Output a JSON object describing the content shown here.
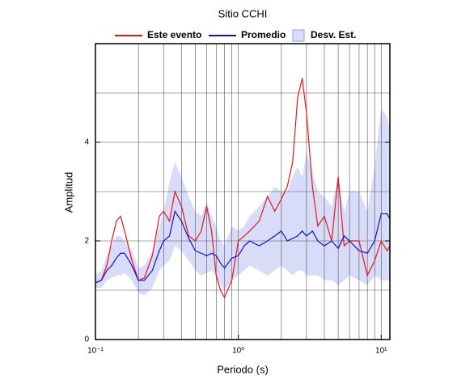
{
  "chart_data": {
    "type": "line",
    "title": "Sitio CCHI",
    "x_label": "Periodo (s)",
    "y_label": "Amplitud",
    "log_x": true,
    "grid": true,
    "xlim": [
      0.1,
      11.5
    ],
    "ylim": [
      0,
      6
    ],
    "xticks": [
      {
        "value": 0.1,
        "label": "10⁻¹"
      },
      {
        "value": 1,
        "label": "10⁰"
      },
      {
        "value": 10,
        "label": "10¹"
      }
    ],
    "xgrid": [
      0.2,
      0.3,
      0.4,
      0.5,
      0.6,
      0.7,
      0.8,
      0.9,
      1,
      2,
      3,
      4,
      5,
      6,
      7,
      8,
      9,
      10
    ],
    "yticks": [
      0,
      2,
      4
    ],
    "ygrid": [
      1,
      2,
      3,
      4,
      5
    ],
    "x": [
      0.1,
      0.11,
      0.12,
      0.13,
      0.14,
      0.15,
      0.16,
      0.18,
      0.2,
      0.22,
      0.25,
      0.28,
      0.3,
      0.33,
      0.36,
      0.4,
      0.45,
      0.5,
      0.55,
      0.6,
      0.65,
      0.7,
      0.75,
      0.8,
      0.9,
      1.0,
      1.1,
      1.2,
      1.4,
      1.6,
      1.8,
      2.0,
      2.2,
      2.4,
      2.6,
      2.8,
      3.0,
      3.3,
      3.6,
      4.0,
      4.5,
      5.0,
      5.5,
      6.0,
      7.0,
      8.0,
      9.0,
      10,
      11,
      11.5
    ],
    "series": [
      {
        "name": "Este evento",
        "color": "#e8161b",
        "values": [
          1.15,
          1.2,
          1.5,
          2.0,
          2.4,
          2.5,
          2.2,
          1.6,
          1.2,
          1.25,
          1.7,
          2.5,
          2.6,
          2.4,
          3.0,
          2.7,
          2.1,
          2.0,
          2.2,
          2.7,
          2.2,
          1.3,
          1.0,
          0.85,
          1.2,
          2.0,
          2.1,
          2.2,
          2.4,
          2.9,
          2.6,
          2.85,
          3.1,
          3.6,
          4.9,
          5.3,
          4.6,
          3.1,
          2.3,
          2.5,
          2.0,
          3.3,
          1.9,
          2.0,
          2.0,
          1.3,
          1.6,
          2.0,
          1.8,
          1.9
        ]
      },
      {
        "name": "Promedio",
        "color": "#1010c8",
        "values": [
          1.15,
          1.2,
          1.4,
          1.5,
          1.65,
          1.75,
          1.75,
          1.5,
          1.2,
          1.2,
          1.4,
          1.8,
          2.0,
          2.1,
          2.6,
          2.4,
          2.05,
          1.8,
          1.75,
          1.7,
          1.75,
          1.7,
          1.55,
          1.45,
          1.65,
          1.7,
          1.9,
          2.0,
          1.9,
          2.0,
          2.1,
          2.2,
          2.0,
          2.05,
          2.1,
          2.2,
          2.1,
          2.2,
          2.0,
          1.9,
          2.0,
          1.85,
          2.1,
          2.0,
          1.8,
          1.75,
          2.0,
          2.55,
          2.55,
          2.45
        ]
      },
      {
        "name": "Desv. Est.",
        "color": "#d8dcf8",
        "low": [
          1.05,
          1.05,
          1.2,
          1.25,
          1.3,
          1.3,
          1.35,
          1.2,
          0.95,
          0.9,
          1.05,
          1.4,
          1.5,
          1.6,
          1.9,
          1.8,
          1.6,
          1.4,
          1.3,
          1.35,
          1.4,
          1.3,
          1.1,
          1.0,
          1.2,
          1.3,
          1.4,
          1.5,
          1.4,
          1.3,
          1.4,
          1.5,
          1.4,
          1.3,
          1.4,
          1.4,
          1.3,
          1.3,
          1.3,
          1.2,
          1.2,
          1.1,
          1.2,
          1.3,
          1.2,
          1.1,
          1.3,
          1.2,
          1.2,
          1.2
        ],
        "high": [
          1.3,
          1.4,
          1.7,
          1.9,
          2.1,
          2.1,
          2.0,
          1.8,
          1.45,
          1.5,
          1.8,
          2.3,
          2.6,
          3.2,
          3.6,
          3.3,
          2.9,
          2.6,
          2.5,
          2.8,
          2.5,
          2.3,
          2.0,
          1.9,
          2.3,
          2.2,
          2.3,
          2.5,
          2.7,
          2.9,
          3.1,
          3.0,
          3.0,
          3.3,
          3.5,
          3.3,
          3.8,
          3.4,
          3.0,
          2.9,
          2.7,
          3.3,
          2.6,
          3.0,
          3.0,
          2.6,
          3.5,
          4.7,
          4.5,
          4.3
        ]
      }
    ]
  }
}
